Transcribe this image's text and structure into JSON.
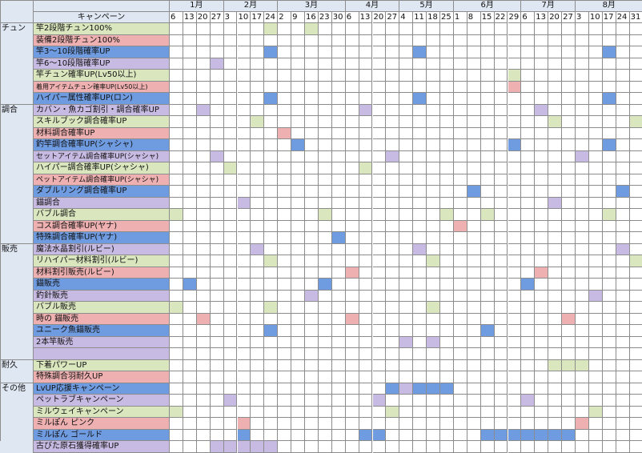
{
  "sheet": {
    "corner_label": "",
    "header_label": "キャンペーン",
    "colors": {
      "green": "#d9e6be",
      "pink": "#eeb0b0",
      "blue": "#6f9be0",
      "lav": "#c8bbe3",
      "blank": "#ffffff",
      "header_bg": "#dfe7f2",
      "grid_line": "#8c8c8c"
    },
    "months": [
      {
        "label": "1月",
        "span": 4
      },
      {
        "label": "2月",
        "span": 4
      },
      {
        "label": "3月",
        "span": 5
      },
      {
        "label": "4月",
        "span": 4
      },
      {
        "label": "5月",
        "span": 4
      },
      {
        "label": "6月",
        "span": 5
      },
      {
        "label": "7月",
        "span": 4
      },
      {
        "label": "8月",
        "span": 5
      }
    ],
    "days": [
      "6",
      "13",
      "20",
      "27",
      "3",
      "10",
      "17",
      "24",
      "2",
      "9",
      "16",
      "23",
      "30",
      "6",
      "13",
      "20",
      "27",
      "4",
      "11",
      "18",
      "25",
      "1",
      "8",
      "15",
      "22",
      "29",
      "6",
      "13",
      "20",
      "27",
      "3",
      "10",
      "17",
      "24",
      "31"
    ],
    "categories": [
      {
        "label": "チュン",
        "start": 0,
        "end": 7
      },
      {
        "label": "調合",
        "start": 7,
        "end": 19
      },
      {
        "label": "販売",
        "start": 19,
        "end": 29
      },
      {
        "label": "耐久",
        "start": 29,
        "end": 31
      },
      {
        "label": "その他",
        "start": 31,
        "end": 37
      }
    ],
    "rows": [
      {
        "label": "竿2段階チュン100%",
        "color": "green",
        "cells": {
          "7": "green",
          "10": "green"
        }
      },
      {
        "label": "装備2段階チュン100%",
        "color": "pink",
        "cells": {}
      },
      {
        "label": "竿3～10段階確率UP",
        "color": "blue",
        "cells": {
          "7": "blue",
          "18": "blue",
          "32": "blue"
        }
      },
      {
        "label": "竿6～10段階確率UP",
        "color": "lav",
        "cells": {
          "3": "lav"
        }
      },
      {
        "label": "竿チュン確率UP(Lv50以上)",
        "color": "green",
        "cells": {
          "25": "green"
        }
      },
      {
        "label": "着用アイテムチュン確率UP(Lv50以上)",
        "color": "pink",
        "cells": {
          "25": "pink"
        }
      },
      {
        "label": "ハイパー属性確率UP(ロン)",
        "color": "blue",
        "cells": {
          "7": "blue",
          "18": "blue",
          "32": "blue"
        }
      },
      {
        "label": "カバン・魚カゴ割引・調合確率UP",
        "color": "lav",
        "cells": {
          "2": "lav",
          "14": "lav",
          "27": "lav"
        }
      },
      {
        "label": "スキルブック調合確率UP",
        "color": "green",
        "cells": {
          "6": "green",
          "28": "green",
          "34": "green"
        }
      },
      {
        "label": "材料調合確率UP",
        "color": "pink",
        "cells": {
          "8": "pink"
        }
      },
      {
        "label": "釣竿調合確率UP(シャシャ)",
        "color": "blue",
        "cells": {
          "9": "blue",
          "25": "blue",
          "32": "blue"
        }
      },
      {
        "label": "セットアイテム調合確率UP(シャシャ)",
        "color": "lav",
        "cells": {
          "3": "lav",
          "16": "lav",
          "30": "lav"
        }
      },
      {
        "label": "ハイパー調合確率UP(シャシャ)",
        "color": "green",
        "cells": {
          "4": "green",
          "14": "green"
        }
      },
      {
        "label": "ペットアイテム調合確率UP(シャシャ)",
        "color": "pink",
        "cells": {}
      },
      {
        "label": "ダブルリング調合確率UP",
        "color": "blue",
        "cells": {
          "22": "blue",
          "33": "blue"
        }
      },
      {
        "label": "錨調合",
        "color": "lav",
        "cells": {
          "5": "lav",
          "28": "lav"
        }
      },
      {
        "label": "バブル調合",
        "color": "green",
        "cells": {
          "0": "green",
          "11": "green",
          "20": "green",
          "23": "green",
          "32": "green"
        }
      },
      {
        "label": "コス調合確率UP(ヤナ)",
        "color": "pink",
        "cells": {
          "21": "pink"
        }
      },
      {
        "label": "特殊調合確率UP(ヤナ)",
        "color": "blue",
        "cells": {
          "12": "blue"
        }
      },
      {
        "label": "魔法水晶割引(ルビー)",
        "color": "lav",
        "cells": {
          "6": "lav",
          "18": "lav",
          "33": "lav"
        }
      },
      {
        "label": "リハイパー材料割引(ルビー)",
        "color": "green",
        "cells": {
          "7": "green",
          "19": "green",
          "34": "green"
        }
      },
      {
        "label": "材料割引販売(ルビー)",
        "color": "pink",
        "cells": {
          "13": "pink",
          "27": "pink"
        }
      },
      {
        "label": "錨販売",
        "color": "blue",
        "cells": {
          "1": "blue",
          "11": "blue",
          "26": "blue"
        }
      },
      {
        "label": "釣針販売",
        "color": "lav",
        "cells": {
          "10": "lav",
          "31": "lav"
        }
      },
      {
        "label": "バブル販売",
        "color": "green",
        "cells": {
          "0": "green",
          "7": "green",
          "19": "green"
        }
      },
      {
        "label": "時の 錨販売",
        "color": "pink",
        "cells": {
          "2": "pink",
          "13": "pink",
          "29": "pink"
        }
      },
      {
        "label": "ユニーク魚錨販売",
        "color": "blue",
        "cells": {
          "7": "blue",
          "23": "blue"
        }
      },
      {
        "label": "2本竿販売",
        "color": "lav",
        "cells": {
          "17": "lav",
          "19": "lav"
        }
      },
      {
        "label": "",
        "color": "lav",
        "cells": {}
      },
      {
        "label": "下着パワーUP",
        "color": "green",
        "cells": {
          "28": "green",
          "29": "green",
          "30": "green"
        }
      },
      {
        "label": "特殊調合羽耐久UP",
        "color": "pink",
        "cells": {}
      },
      {
        "label": "LvUP応援キャンペーン",
        "color": "blue",
        "cells": {
          "16": "blue",
          "17": "lav",
          "18": "blue",
          "19": "blue",
          "20": "blue"
        }
      },
      {
        "label": "ペットラブキャンペーン",
        "color": "lav",
        "cells": {
          "4": "lav",
          "15": "lav",
          "26": "lav"
        }
      },
      {
        "label": "ミルウェイキャンペーン",
        "color": "green",
        "cells": {
          "0": "green",
          "16": "green",
          "31": "green"
        }
      },
      {
        "label": "ミルぽん ピンク",
        "color": "pink",
        "cells": {
          "5": "pink",
          "30": "pink"
        }
      },
      {
        "label": "ミルぽん ゴールド",
        "color": "blue",
        "cells": {
          "5": "blue",
          "14": "blue",
          "15": "blue",
          "23": "blue",
          "24": "blue",
          "25": "blue",
          "26": "blue",
          "27": "blue",
          "28": "blue",
          "29": "blue"
        }
      },
      {
        "label": "古びた原石獲得確率UP",
        "color": "lav",
        "cells": {
          "3": "lav",
          "4": "lav",
          "5": "lav",
          "6": "lav",
          "7": "lav"
        }
      }
    ]
  }
}
